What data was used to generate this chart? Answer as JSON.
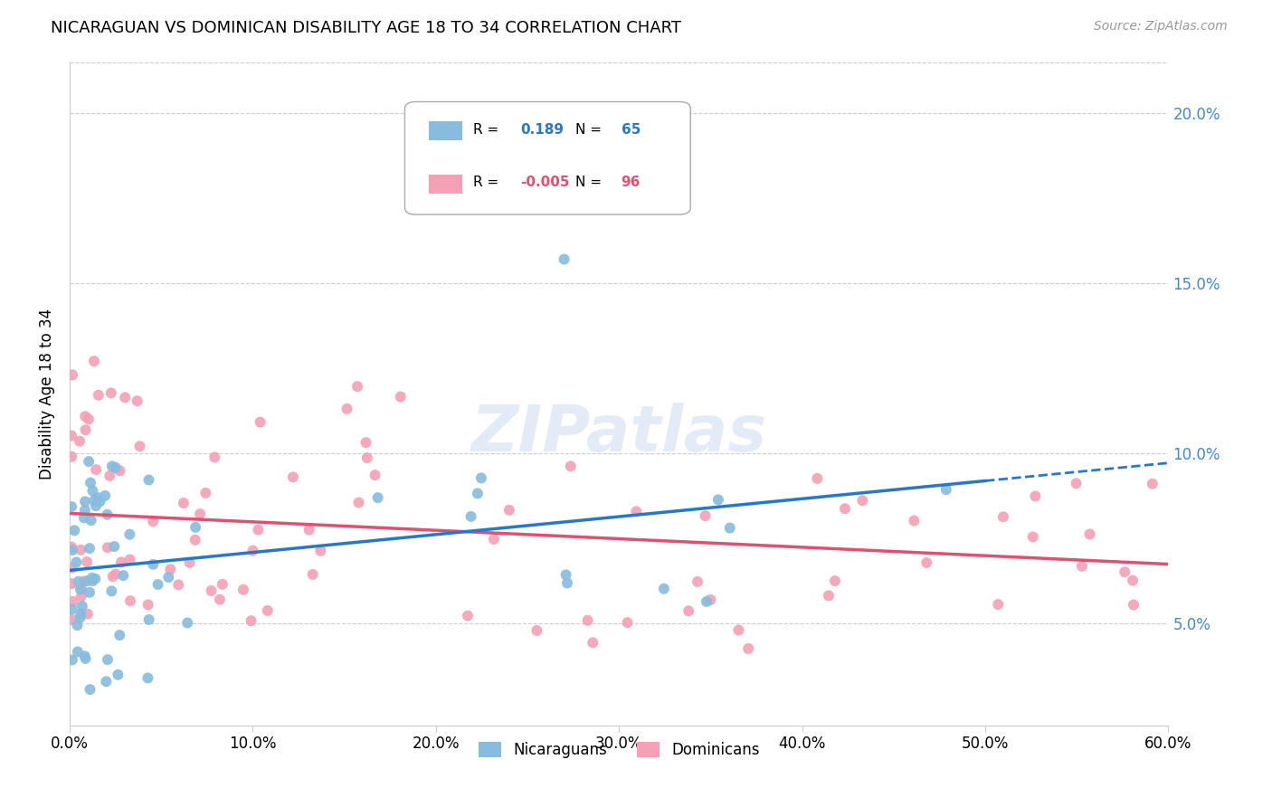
{
  "title": "NICARAGUAN VS DOMINICAN DISABILITY AGE 18 TO 34 CORRELATION CHART",
  "source": "Source: ZipAtlas.com",
  "ylabel": "Disability Age 18 to 34",
  "xlabel_vals": [
    0.0,
    0.1,
    0.2,
    0.3,
    0.4,
    0.5,
    0.6
  ],
  "ylabel_vals": [
    0.05,
    0.1,
    0.15,
    0.2
  ],
  "xmin": 0.0,
  "xmax": 0.6,
  "ymin": 0.02,
  "ymax": 0.215,
  "nicaraguan_color": "#87bcde",
  "dominican_color": "#f4a0b5",
  "nicaraguan_line_color": "#2878c8",
  "dominican_line_color": "#e05070",
  "right_axis_color": "#4488cc",
  "R_nicaraguan": 0.189,
  "N_nicaraguan": 65,
  "R_dominican": -0.005,
  "N_dominican": 96,
  "legend_R1_color": "#2878c8",
  "legend_R2_color": "#e05070",
  "legend_N1_color": "#2878c8",
  "legend_N2_color": "#e05070"
}
